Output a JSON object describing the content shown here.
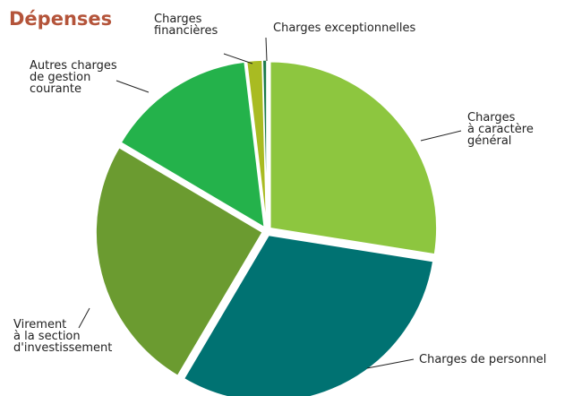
{
  "chart_data": {
    "type": "pie",
    "title": "Dépenses",
    "categories": [
      "Charges\nà caractère\ngénéral",
      "Charges de personnel",
      "Virement\nà la section\nd'investissement",
      "Autres charges\nde gestion\ncourante",
      "Charges\nfinancières",
      "Charges exceptionnelles"
    ],
    "values": [
      27.5,
      31,
      25,
      14.6,
      1.5,
      0.4
    ],
    "colors": [
      "#8dc63f",
      "#007272",
      "#6b9b30",
      "#24b24b",
      "#a9bb22",
      "#1a7a4a"
    ]
  }
}
